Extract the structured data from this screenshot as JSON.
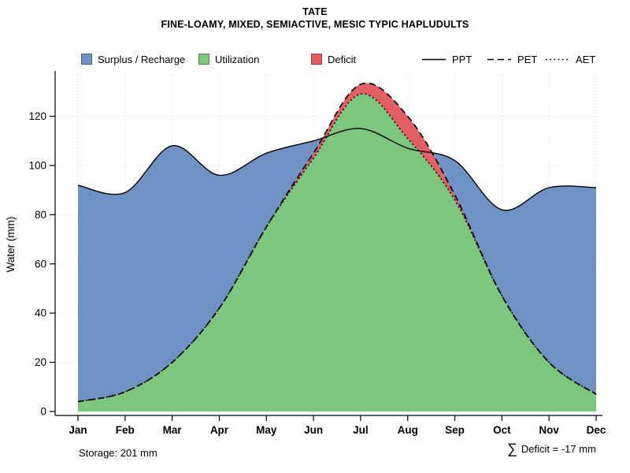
{
  "chart_data": {
    "type": "area",
    "title": "TATE",
    "subtitle": "FINE-LOAMY, MIXED, SEMIACTIVE, MESIC TYPIC HAPLUDULTS",
    "x": [
      "Jan",
      "Feb",
      "Mar",
      "Apr",
      "May",
      "Jun",
      "Jul",
      "Aug",
      "Sep",
      "Oct",
      "Nov",
      "Dec"
    ],
    "ylabel": "Water (mm)",
    "ylim": [
      0,
      138
    ],
    "yticks": [
      0,
      20,
      40,
      60,
      80,
      100,
      120
    ],
    "grid": true,
    "legend_position": "top",
    "series": [
      {
        "name": "PPT",
        "style": "solid",
        "color": "#000000",
        "values": [
          92,
          89,
          108,
          96,
          105,
          110,
          115,
          107,
          102,
          82,
          91,
          91
        ]
      },
      {
        "name": "PET",
        "style": "dashed",
        "color": "#000000",
        "values": [
          4,
          8,
          20,
          42,
          75,
          105,
          133,
          120,
          88,
          47,
          20,
          7
        ]
      },
      {
        "name": "AET",
        "style": "dotted",
        "color": "#000000",
        "values": [
          4,
          8,
          20,
          42,
          75,
          103,
          129,
          111,
          86,
          47,
          20,
          7
        ]
      }
    ],
    "areas": [
      {
        "name": "Surplus / Recharge",
        "color": "#6d92c3"
      },
      {
        "name": "Utilization",
        "color": "#7dc67e"
      },
      {
        "name": "Deficit",
        "color": "#e25f66"
      }
    ]
  },
  "annotations": {
    "storage": "Storage: 201 mm",
    "deficit_sigma": "∑",
    "deficit_text": "Deficit = -17 mm"
  }
}
